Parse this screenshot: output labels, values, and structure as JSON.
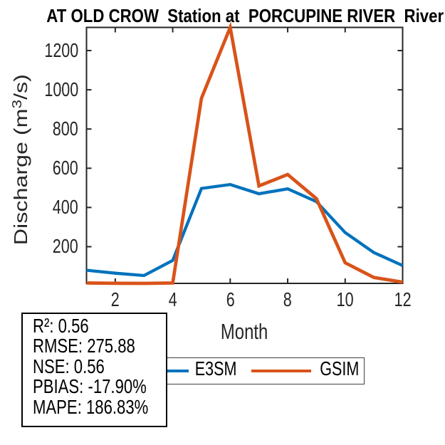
{
  "chart_data": {
    "type": "line",
    "title": "AT OLD CROW  Station at  PORCUPINE RIVER  River",
    "xlabel": "Month",
    "ylabel": {
      "prefix": "Discharge (m",
      "sup": "3",
      "suffix": "/s)"
    },
    "x": [
      1,
      2,
      3,
      4,
      5,
      6,
      7,
      8,
      9,
      10,
      11,
      12
    ],
    "series": [
      {
        "name": "E3SM",
        "color": "#0072BD",
        "values": [
          80,
          65,
          53,
          130,
          497,
          517,
          470,
          495,
          430,
          272,
          170,
          104
        ]
      },
      {
        "name": "GSIM",
        "color": "#D95319",
        "values": [
          15,
          13.5,
          13,
          15,
          957,
          1318,
          510,
          568,
          445,
          118,
          43,
          19
        ]
      }
    ],
    "xlim": [
      1,
      12
    ],
    "ylim": [
      13,
      1318
    ],
    "xticks": [
      2,
      4,
      6,
      8,
      10,
      12
    ],
    "yticks": [
      200,
      400,
      600,
      800,
      1000,
      1200
    ],
    "grid": false,
    "legend_position": "below axis, horizontal",
    "axis_color": "#262626"
  },
  "stats_box": {
    "lines": [
      "R²: 0.56",
      "RMSE: 275.88",
      "NSE: 0.56",
      "PBIAS: -17.90%",
      "MAPE: 186.83%"
    ]
  }
}
